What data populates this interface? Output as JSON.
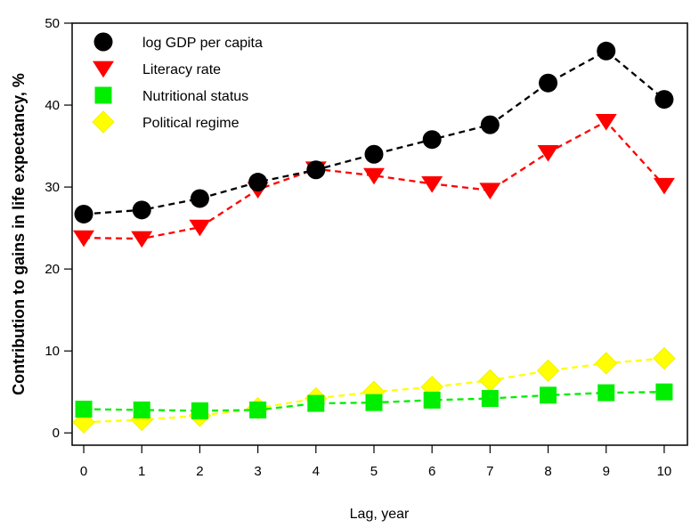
{
  "chart_data": {
    "type": "line",
    "title": "",
    "xlabel": "Lag, year",
    "ylabel": "Contribution to gains in life expectancy, %",
    "xlim": [
      -0.2,
      10.4
    ],
    "ylim": [
      -1.5,
      50
    ],
    "x": [
      0,
      1,
      2,
      3,
      4,
      5,
      6,
      7,
      8,
      9,
      10
    ],
    "xticks": [
      0,
      1,
      2,
      3,
      4,
      5,
      6,
      7,
      8,
      9,
      10
    ],
    "xtick_labels": [
      "0",
      "1",
      "2",
      "3",
      "4",
      "5",
      "6",
      "7",
      "8",
      "9",
      "10"
    ],
    "yticks": [
      0,
      10,
      20,
      30,
      40,
      50
    ],
    "ytick_labels": [
      "0",
      "10",
      "20",
      "30",
      "40",
      "50"
    ],
    "grid": false,
    "legend_position": "top-left",
    "series": [
      {
        "name": "log GDP per capita",
        "color": "#000000",
        "marker": "circle",
        "values": [
          26.7,
          27.2,
          28.6,
          30.6,
          32.1,
          34.0,
          35.8,
          37.6,
          42.7,
          46.6,
          40.7
        ]
      },
      {
        "name": "Literacy rate",
        "color": "#ff0000",
        "marker": "triangle-down",
        "values": [
          23.8,
          23.7,
          25.1,
          29.7,
          32.2,
          31.4,
          30.4,
          29.6,
          34.2,
          38.0,
          30.2
        ]
      },
      {
        "name": "Nutritional status",
        "color": "#00ee00",
        "marker": "square",
        "values": [
          2.9,
          2.8,
          2.7,
          2.8,
          3.6,
          3.7,
          4.0,
          4.2,
          4.6,
          4.9,
          5.0
        ]
      },
      {
        "name": "Political regime",
        "color": "#ffff00",
        "marker": "diamond",
        "values": [
          1.3,
          1.6,
          2.1,
          3.0,
          4.2,
          5.0,
          5.6,
          6.4,
          7.6,
          8.5,
          9.1
        ]
      }
    ]
  }
}
